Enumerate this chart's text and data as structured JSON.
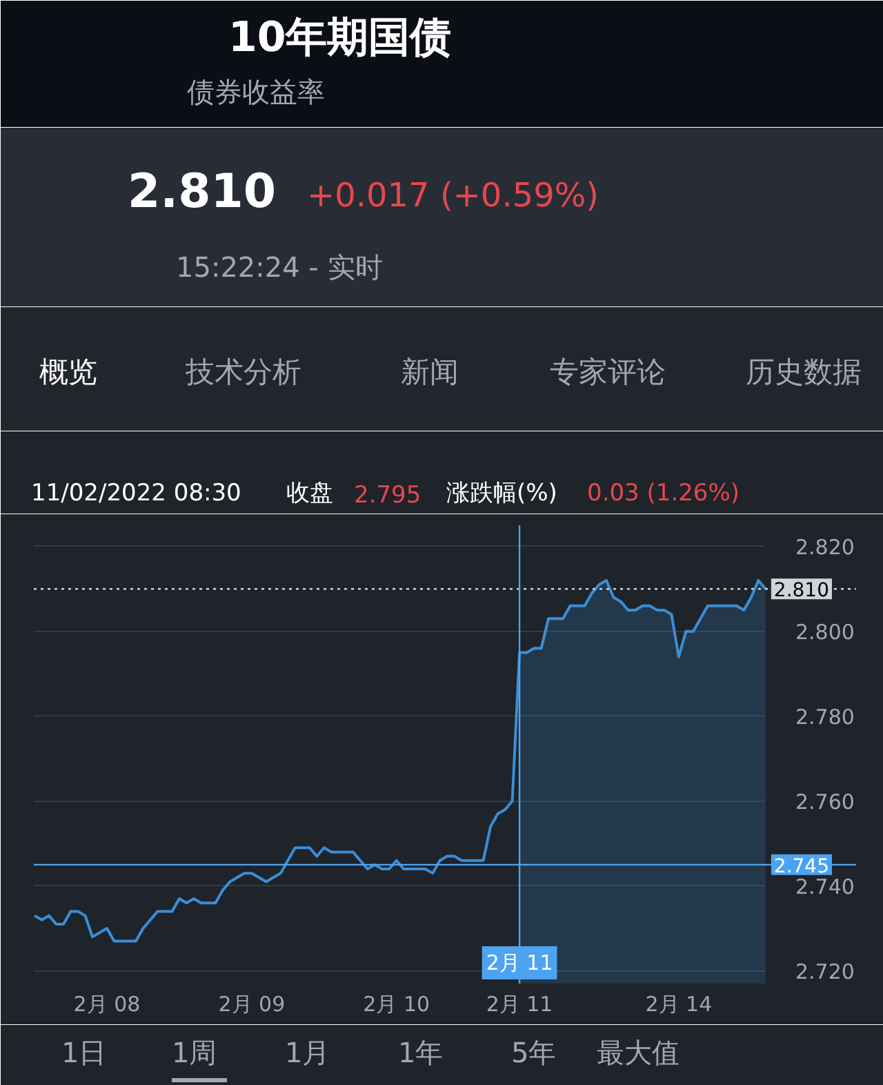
{
  "chart_data": {
    "type": "line",
    "title": "10年期国债",
    "subtitle": "债券收益率",
    "annotations": [
      "2.810",
      "+0.017 (+0.59%)",
      "15:22:24 - 实时",
      "概览",
      "技术分析",
      "新闻",
      "专家评论",
      "历史数据",
      "11/02/2022 08:30",
      "收盘",
      "2.795",
      "涨跌幅(%)",
      "0.03 (1.26%)",
      "1日",
      "1周",
      "1月",
      "1年",
      "5年",
      "最大值"
    ],
    "categories": [
      null,
      null,
      null,
      null,
      null,
      null,
      null,
      null,
      null,
      null,
      "2月 08",
      null,
      null,
      null,
      null,
      null,
      null,
      null,
      null,
      null,
      null,
      null,
      null,
      null,
      null,
      null,
      null,
      null,
      null,
      null,
      "2月 09",
      null,
      null,
      null,
      null,
      null,
      null,
      null,
      null,
      null,
      null,
      null,
      null,
      null,
      null,
      null,
      null,
      null,
      null,
      null,
      "2月 10",
      null,
      null,
      null,
      null,
      null,
      null,
      null,
      null,
      null,
      null,
      null,
      null,
      null,
      null,
      null,
      null,
      "2月 11",
      null,
      null,
      null,
      null,
      null,
      null,
      null,
      null,
      null,
      null,
      null,
      null,
      null,
      null,
      null,
      null,
      null,
      null,
      null,
      null,
      null,
      "2月 14",
      null,
      null,
      null,
      null,
      null,
      null,
      null,
      null,
      null,
      null,
      null,
      null
    ],
    "series": [
      {
        "color": "#3a8ed6",
        "values": [
          2.733,
          2.732,
          2.733,
          2.731,
          2.731,
          2.734,
          2.734,
          2.733,
          2.728,
          2.729,
          2.73,
          2.727,
          2.727,
          2.727,
          2.727,
          2.73,
          2.732,
          2.734,
          2.734,
          2.734,
          2.737,
          2.736,
          2.737,
          2.736,
          2.736,
          2.736,
          2.739,
          2.741,
          2.742,
          2.743,
          2.743,
          2.742,
          2.741,
          2.742,
          2.743,
          2.746,
          2.749,
          2.749,
          2.749,
          2.747,
          2.749,
          2.748,
          2.748,
          2.748,
          2.748,
          2.746,
          2.744,
          2.745,
          2.744,
          2.744,
          2.746,
          2.744,
          2.744,
          2.744,
          2.744,
          2.743,
          2.746,
          2.747,
          2.747,
          2.746,
          2.746,
          2.746,
          2.746,
          2.754,
          2.757,
          2.758,
          2.76,
          2.795,
          null,
          null,
          null,
          null,
          null,
          null,
          null,
          null,
          null,
          null,
          null,
          null,
          null,
          null,
          null,
          null,
          null,
          null,
          null,
          null,
          null,
          null,
          null,
          null,
          null,
          null,
          null,
          null,
          null,
          null,
          null,
          null,
          null,
          null
        ]
      },
      {
        "type": "area",
        "color": "#3a8ed6",
        "values": [
          null,
          null,
          null,
          null,
          null,
          null,
          null,
          null,
          null,
          null,
          null,
          null,
          null,
          null,
          null,
          null,
          null,
          null,
          null,
          null,
          null,
          null,
          null,
          null,
          null,
          null,
          null,
          null,
          null,
          null,
          null,
          null,
          null,
          null,
          null,
          null,
          null,
          null,
          null,
          null,
          null,
          null,
          null,
          null,
          null,
          null,
          null,
          null,
          null,
          null,
          null,
          null,
          null,
          null,
          null,
          null,
          null,
          null,
          null,
          null,
          null,
          null,
          null,
          null,
          null,
          null,
          null,
          2.795,
          2.795,
          2.796,
          2.796,
          2.803,
          2.803,
          2.803,
          2.806,
          2.806,
          2.806,
          2.809,
          2.811,
          2.812,
          2.808,
          2.807,
          2.805,
          2.805,
          2.806,
          2.806,
          2.805,
          2.805,
          2.804,
          2.794,
          2.8,
          2.8,
          2.803,
          2.806,
          2.806,
          2.806,
          2.806,
          2.806,
          2.805,
          2.808,
          2.812,
          2.81
        ]
      }
    ],
    "ylim": [
      2.717,
      2.825
    ],
    "yticks": [
      {
        "value": 2.72,
        "label": "2.720"
      },
      {
        "value": 2.74,
        "label": "2.740"
      },
      {
        "value": 2.76,
        "label": "2.760"
      },
      {
        "value": 2.78,
        "label": "2.780"
      },
      {
        "value": 2.8,
        "label": "2.800"
      },
      {
        "value": 2.82,
        "label": "2.820"
      }
    ],
    "grid": "y",
    "ref_lines": [
      {
        "axis": "y",
        "value": 2.81,
        "label": "2.810",
        "color": "#d0d3d8",
        "line_style": "dotted"
      },
      {
        "axis": "y",
        "value": 2.745,
        "label": "2.745",
        "color": "#4da3f0",
        "line_style": "solid"
      },
      {
        "axis": "x",
        "value": "2月 11",
        "color": "#4da3f0",
        "line_style": "solid"
      }
    ]
  }
}
